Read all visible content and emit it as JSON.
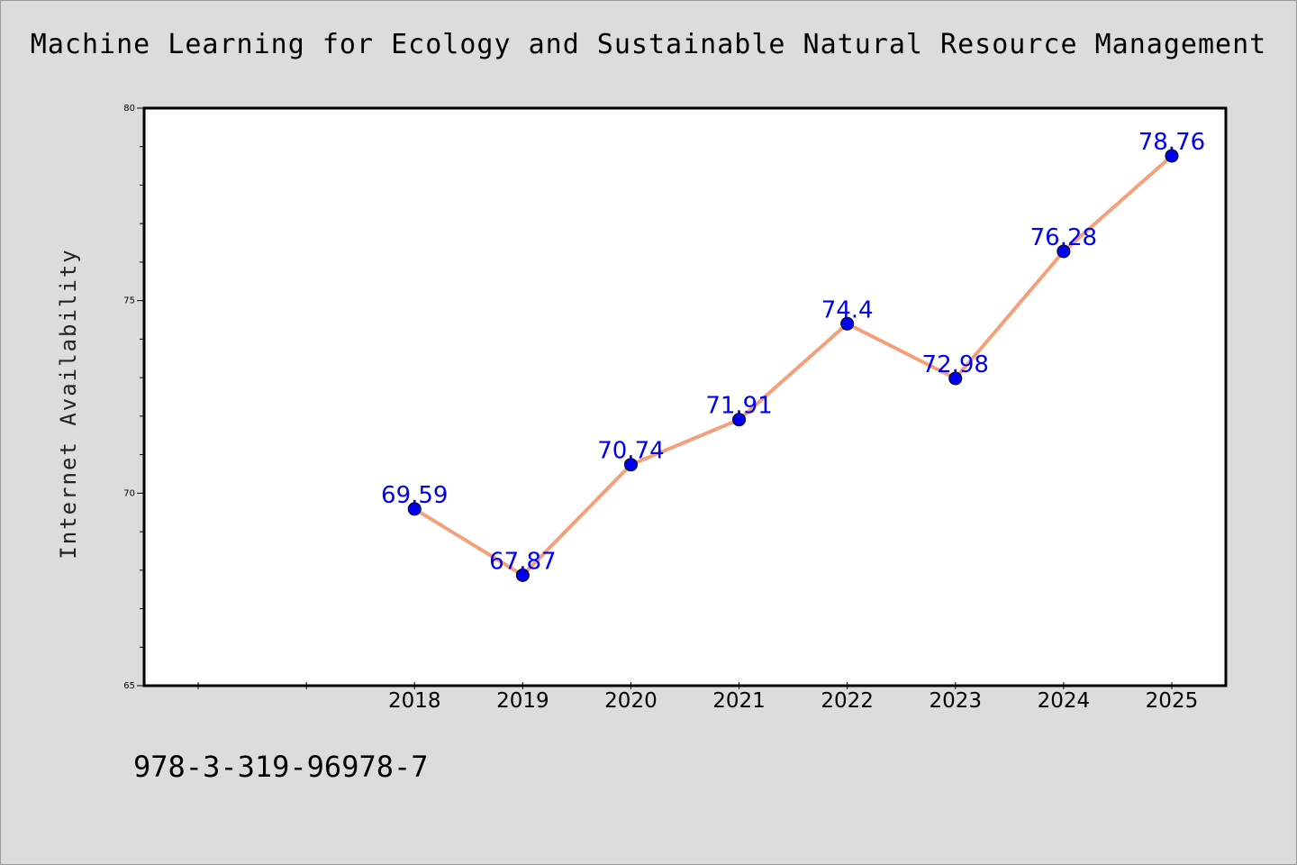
{
  "title": "Machine Learning for Ecology and Sustainable Natural Resource Management",
  "footer_text": "978-3-319-96978-7",
  "colors": {
    "background": "#dcdcdc",
    "plot_background": "#ffffff",
    "line": "#f4a07a",
    "marker": "#0000ee",
    "data_label": "#0000ee"
  },
  "chart_data": {
    "type": "line",
    "title": "Machine Learning for Ecology and Sustainable Natural Resource Management",
    "xlabel": "",
    "ylabel": "Internet Availability",
    "ylim": [
      65,
      80
    ],
    "y_ticks": [
      65,
      70,
      75,
      80
    ],
    "x_ticks": [
      2016,
      2017,
      2018,
      2019,
      2020,
      2021,
      2022,
      2023,
      2024,
      2025
    ],
    "x_tick_labels": [
      "",
      "",
      "2018",
      "2019",
      "2020",
      "2021",
      "2022",
      "2023",
      "2024",
      "2025"
    ],
    "x": [
      2018,
      2019,
      2020,
      2021,
      2022,
      2023,
      2024,
      2025
    ],
    "series": [
      {
        "values": [
          69.59,
          67.87,
          70.74,
          71.91,
          74.4,
          72.98,
          76.28,
          78.76
        ],
        "labels": [
          "69.59",
          "67.87",
          "70.74",
          "71.91",
          "74.4",
          "72.98",
          "76.28",
          "78.76"
        ]
      }
    ],
    "grid": false,
    "legend": "none"
  }
}
